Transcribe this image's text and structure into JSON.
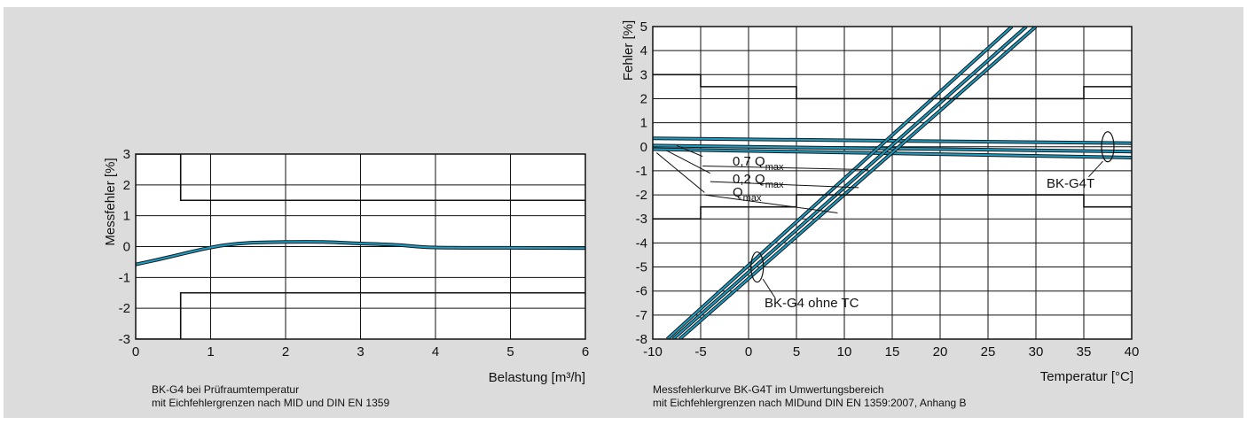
{
  "colors": {
    "panel": "#dcdcdc",
    "plot_bg": "#ffffff",
    "grid": "#111111",
    "curve": "#1a9cc4",
    "curve_outline": "#1a1a1a",
    "limits": "#111111",
    "ylabel_right": "#3a3a7a"
  },
  "chart_data": [
    {
      "type": "line",
      "xlabel": "Belastung [m³/h]",
      "ylabel": "Messfehler [%]",
      "xlim": [
        0,
        6
      ],
      "ylim": [
        -3,
        3
      ],
      "xticks": [
        "0",
        "1",
        "2",
        "3",
        "4",
        "5",
        "6"
      ],
      "yticks": [
        "3",
        "2",
        "1",
        "0",
        "-1",
        "-2",
        "-3"
      ],
      "grid": true,
      "caption_line1": "BK-G4 bei Prüfraumtemperatur",
      "caption_line2": "mit Eichfehlergrenzen nach MID und DIN EN 1359",
      "series": [
        {
          "kind": "error_curve",
          "x": [
            0,
            0.3,
            0.6,
            0.9,
            1.2,
            1.5,
            2.0,
            2.5,
            3.0,
            3.5,
            4.0,
            5.0,
            6.0
          ],
          "y": [
            -0.58,
            -0.42,
            -0.25,
            -0.08,
            0.05,
            0.12,
            0.15,
            0.15,
            0.1,
            0.05,
            -0.03,
            -0.04,
            -0.05
          ]
        },
        {
          "kind": "limit",
          "x": [
            0,
            0.6,
            0.6,
            6
          ],
          "y": [
            3,
            3,
            1.5,
            1.5
          ]
        },
        {
          "kind": "limit",
          "x": [
            0,
            0.6,
            0.6,
            6
          ],
          "y": [
            -3,
            -3,
            -1.5,
            -1.5
          ]
        }
      ]
    },
    {
      "type": "line",
      "xlabel": "Temperatur [°C]",
      "ylabel": "Fehler [%]",
      "xlim": [
        -10,
        40
      ],
      "ylim": [
        -8,
        5
      ],
      "xticks": [
        "-10",
        "-5",
        "0",
        "5",
        "10",
        "15",
        "20",
        "25",
        "30",
        "35",
        "40"
      ],
      "yticks": [
        "5",
        "4",
        "3",
        "2",
        "1",
        "0",
        "-1",
        "-2",
        "-3",
        "-4",
        "-5",
        "-6",
        "-7",
        "-8"
      ],
      "grid": true,
      "caption_line1": "Messfehlerkurve BK-G4T im Umwertungsbereich",
      "caption_line2": "mit Eichfehlergrenzen nach MIDund DIN EN 1359:2007, Anhang B",
      "labels": {
        "q07": "0,7 Q",
        "q02": "0,2 Q",
        "qmax": "Q",
        "sub_max": "max",
        "bkg4t": "BK-G4T",
        "bkg4": "BK-G4 ohne TC"
      },
      "series": [
        {
          "kind": "error_curve",
          "x": [
            -10,
            40
          ],
          "y": [
            0.35,
            0.15
          ]
        },
        {
          "kind": "error_curve",
          "x": [
            -10,
            40
          ],
          "y": [
            0.05,
            -0.2
          ]
        },
        {
          "kind": "error_curve",
          "x": [
            -10,
            40
          ],
          "y": [
            -0.1,
            -0.45
          ]
        },
        {
          "kind": "error_curve",
          "x": [
            -8.5,
            27.5
          ],
          "y": [
            -8,
            5
          ]
        },
        {
          "kind": "error_curve",
          "x": [
            -7.9,
            29.0
          ],
          "y": [
            -8,
            5
          ]
        },
        {
          "kind": "error_curve",
          "x": [
            -7.2,
            30.0
          ],
          "y": [
            -8,
            5
          ]
        },
        {
          "kind": "limit",
          "x": [
            -10,
            -5,
            -5,
            5,
            5,
            35,
            35,
            40
          ],
          "y": [
            3,
            3,
            2.5,
            2.5,
            2,
            2,
            2.5,
            2.5
          ]
        },
        {
          "kind": "limit",
          "x": [
            -10,
            -5,
            -5,
            5,
            5,
            35,
            35,
            40
          ],
          "y": [
            -3,
            -3,
            -2.5,
            -2.5,
            -2,
            -2,
            -2.5,
            -2.5
          ]
        }
      ]
    }
  ]
}
